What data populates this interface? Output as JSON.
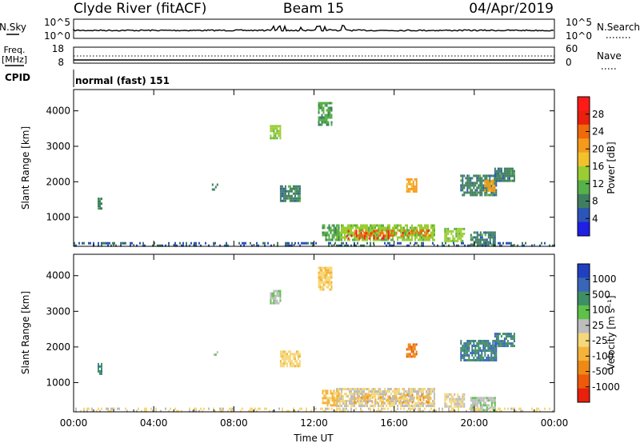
{
  "header": {
    "station": "Clyde River (fitACF)",
    "beam": "Beam 15",
    "date": "04/Apr/2019"
  },
  "summary": {
    "nsky": {
      "label": "N.Sky",
      "ticks": [
        "10^5",
        "10^0"
      ]
    },
    "nsearch": {
      "label": "N.Search",
      "ticks": [
        "10^5",
        "10^0"
      ]
    },
    "freq": {
      "label_line1": "Freq.",
      "label_line2": "[MHz]",
      "ticks": [
        "18",
        "8"
      ]
    },
    "nave": {
      "label": "Nave",
      "ticks": [
        "60",
        "0"
      ]
    },
    "cpid": {
      "label": "CPID",
      "value": "normal (fast) 151"
    }
  },
  "colors": {
    "power": [
      "#1f1fe6",
      "#2b55b8",
      "#3f7f5f",
      "#58b04a",
      "#9acd32",
      "#f2c12e",
      "#f59a1a",
      "#ee6a0a",
      "#e8200c",
      "#ff1a1a"
    ],
    "velocity": [
      "#2040c0",
      "#3a66b8",
      "#3f8f66",
      "#5ec24a",
      "#bdbdbd",
      "#f5d87a",
      "#f5b33a",
      "#ee8a14",
      "#ee5a0a",
      "#e8200c"
    ]
  },
  "chart_data": [
    {
      "type": "heatmap",
      "name": "power-panel",
      "xlabel": "",
      "ylabel": "Slant Range [km]",
      "x_ticks": [
        "00:00",
        "04:00",
        "08:00",
        "12:00",
        "16:00",
        "20:00",
        "00:00"
      ],
      "x_range_hours": [
        0,
        24
      ],
      "y_ticks": [
        1000,
        2000,
        3000,
        4000
      ],
      "y_range_km": [
        180,
        4600
      ],
      "colorbar": {
        "label": "Power [dB]",
        "ticks": [
          "4",
          "8",
          "12",
          "16",
          "20",
          "24",
          "28"
        ],
        "range": [
          0,
          32
        ]
      },
      "blobs": [
        {
          "x": [
            13.1,
            18.0
          ],
          "y": [
            350,
            800
          ],
          "value": 14
        },
        {
          "x": [
            13.6,
            15.8
          ],
          "y": [
            400,
            640
          ],
          "value": 30
        },
        {
          "x": [
            14.0,
            17.8
          ],
          "y": [
            450,
            650
          ],
          "value": 24
        },
        {
          "x": [
            18.5,
            19.5
          ],
          "y": [
            300,
            700
          ],
          "value": 14
        },
        {
          "x": [
            12.4,
            13.2
          ],
          "y": [
            350,
            800
          ],
          "value": 10
        },
        {
          "x": [
            16.6,
            17.1
          ],
          "y": [
            1750,
            2100
          ],
          "value": 20
        },
        {
          "x": [
            10.3,
            11.3
          ],
          "y": [
            1450,
            1900
          ],
          "value": 8
        },
        {
          "x": [
            19.3,
            21.1
          ],
          "y": [
            1600,
            2200
          ],
          "value": 8
        },
        {
          "x": [
            20.5,
            21.0
          ],
          "y": [
            1750,
            2050
          ],
          "value": 20
        },
        {
          "x": [
            21.0,
            22.0
          ],
          "y": [
            2000,
            2400
          ],
          "value": 8
        },
        {
          "x": [
            12.2,
            12.9
          ],
          "y": [
            3600,
            4250
          ],
          "value": 10
        },
        {
          "x": [
            9.8,
            10.3
          ],
          "y": [
            3200,
            3600
          ],
          "value": 14
        },
        {
          "x": [
            1.2,
            1.4
          ],
          "y": [
            1250,
            1550
          ],
          "value": 8
        },
        {
          "x": [
            6.9,
            7.2
          ],
          "y": [
            1700,
            1950
          ],
          "value": 8
        },
        {
          "x": [
            19.8,
            21.0
          ],
          "y": [
            250,
            600
          ],
          "value": 8
        },
        {
          "x": [
            0.0,
            24.0
          ],
          "y": [
            200,
            300
          ],
          "value": 6
        }
      ]
    },
    {
      "type": "heatmap",
      "name": "velocity-panel",
      "xlabel": "Time UT",
      "ylabel": "Slant Range [km]",
      "x_ticks": [
        "00:00",
        "04:00",
        "08:00",
        "12:00",
        "16:00",
        "20:00",
        "00:00"
      ],
      "x_range_hours": [
        0,
        24
      ],
      "y_ticks": [
        1000,
        2000,
        3000,
        4000
      ],
      "y_range_km": [
        180,
        4600
      ],
      "colorbar": {
        "label": "Velocity [m s⁻¹]",
        "ticks": [
          "1000",
          "500",
          "100",
          "25",
          "-25",
          "-100",
          "-500",
          "-1000"
        ],
        "range": [
          -1200,
          1200
        ]
      },
      "blobs": [
        {
          "x": [
            13.1,
            18.0
          ],
          "y": [
            350,
            850
          ],
          "value": 10
        },
        {
          "x": [
            14.0,
            17.8
          ],
          "y": [
            450,
            680
          ],
          "value": -400
        },
        {
          "x": [
            18.5,
            19.5
          ],
          "y": [
            300,
            700
          ],
          "value": 10
        },
        {
          "x": [
            12.4,
            13.2
          ],
          "y": [
            350,
            800
          ],
          "value": -300
        },
        {
          "x": [
            16.6,
            17.1
          ],
          "y": [
            1700,
            2100
          ],
          "value": -700
        },
        {
          "x": [
            10.3,
            11.3
          ],
          "y": [
            1450,
            1900
          ],
          "value": -150
        },
        {
          "x": [
            19.3,
            21.1
          ],
          "y": [
            1600,
            2200
          ],
          "value": 700
        },
        {
          "x": [
            21.0,
            22.0
          ],
          "y": [
            2000,
            2400
          ],
          "value": 700
        },
        {
          "x": [
            12.2,
            12.9
          ],
          "y": [
            3600,
            4250
          ],
          "value": -200
        },
        {
          "x": [
            9.8,
            10.3
          ],
          "y": [
            3200,
            3600
          ],
          "value": 200
        },
        {
          "x": [
            1.2,
            1.4
          ],
          "y": [
            1250,
            1550
          ],
          "value": 700
        },
        {
          "x": [
            6.9,
            7.2
          ],
          "y": [
            1700,
            1950
          ],
          "value": 200
        },
        {
          "x": [
            19.8,
            21.0
          ],
          "y": [
            250,
            600
          ],
          "value": 200
        },
        {
          "x": [
            0.0,
            24.0
          ],
          "y": [
            200,
            300
          ],
          "value": -60
        }
      ]
    }
  ]
}
